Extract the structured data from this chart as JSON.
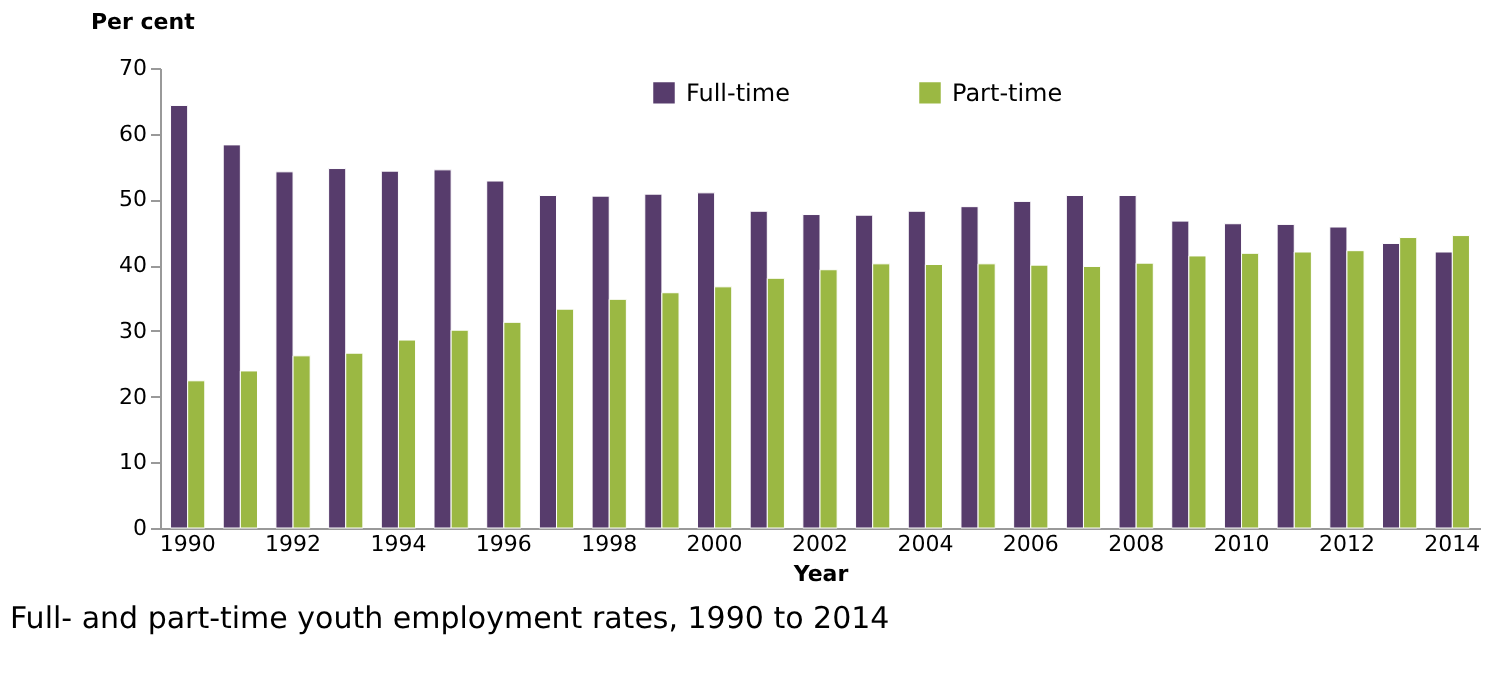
{
  "chart_data": {
    "type": "bar",
    "title": "Full- and part-time youth employment rates, 1990 to 2014",
    "xlabel": "Year",
    "ylabel": "Per cent",
    "categories": [
      "1990",
      null,
      "1992",
      null,
      "1994",
      null,
      "1996",
      null,
      "1998",
      null,
      "2000",
      null,
      "2002",
      null,
      "2004",
      null,
      "2006",
      null,
      "2008",
      null,
      "2010",
      null,
      "2012",
      null,
      "2014"
    ],
    "series": [
      {
        "name": "Full-time",
        "color": "#573c6c",
        "values": [
          64.3,
          58.3,
          54.2,
          54.7,
          54.3,
          54.5,
          52.8,
          50.6,
          50.5,
          50.8,
          51.0,
          48.2,
          47.7,
          47.6,
          48.2,
          48.9,
          49.7,
          50.6,
          50.6,
          46.7,
          46.3,
          46.2,
          45.8,
          43.3,
          42.0
        ]
      },
      {
        "name": "Part-time",
        "color": "#9bb843",
        "values": [
          22.4,
          23.9,
          26.2,
          26.6,
          28.6,
          30.1,
          31.3,
          33.3,
          34.8,
          35.8,
          36.7,
          38.0,
          39.3,
          40.2,
          40.1,
          40.2,
          40.0,
          39.8,
          40.3,
          41.4,
          41.8,
          42.0,
          42.2,
          44.2,
          44.5
        ]
      }
    ],
    "ylim": [
      0,
      70
    ],
    "yticks": [
      0,
      10,
      20,
      30,
      40,
      50,
      60,
      70
    ],
    "grid": false,
    "legend": "top"
  }
}
